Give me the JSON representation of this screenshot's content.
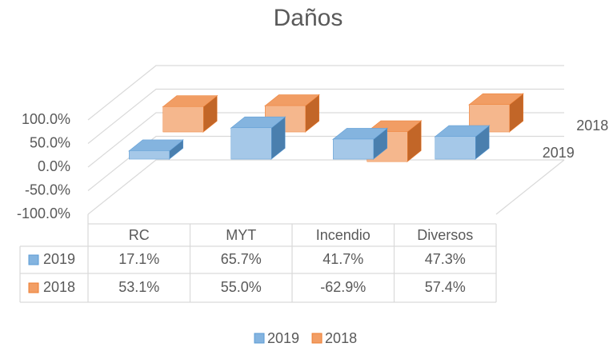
{
  "chart_data": {
    "type": "bar3d",
    "title": "Daños",
    "categories": [
      "RC",
      "MYT",
      "Incendio",
      "Diversos"
    ],
    "series": [
      {
        "name": "2019",
        "color": "#5b9bd5",
        "values": [
          17.1,
          65.7,
          41.7,
          47.3
        ],
        "value_labels": [
          "17.1%",
          "65.7%",
          "41.7%",
          "47.3%"
        ]
      },
      {
        "name": "2018",
        "color": "#ed7d31",
        "values": [
          53.1,
          55.0,
          -62.9,
          57.4
        ],
        "value_labels": [
          "53.1%",
          "55.0%",
          "-62.9%",
          "57.4%"
        ]
      }
    ],
    "ylim": [
      -100,
      100
    ],
    "yticks": [
      {
        "value": -100,
        "label": "-100.0%"
      },
      {
        "value": -50,
        "label": "-50.0%"
      },
      {
        "value": 0,
        "label": "0.0%"
      },
      {
        "value": 50,
        "label": "50.0%"
      },
      {
        "value": 100,
        "label": "100.0%"
      }
    ],
    "grid": true,
    "legend": "bottom"
  }
}
